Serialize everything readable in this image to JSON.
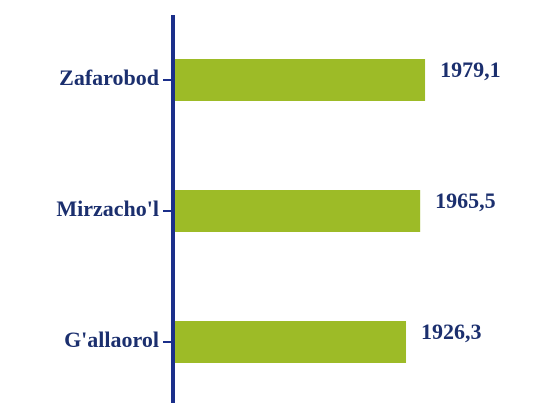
{
  "chart_data": {
    "type": "bar",
    "orientation": "horizontal",
    "categories": [
      "Zafarobod",
      "Mirzacho'l",
      "G'allaorol"
    ],
    "values": [
      1979.1,
      1965.5,
      1926.3
    ],
    "value_labels": [
      "1979,1",
      "1965,5",
      "1926,3"
    ],
    "color": "#9dbb27",
    "axis_color": "#1b2f8a",
    "xlim": [
      1280,
      2000
    ]
  }
}
